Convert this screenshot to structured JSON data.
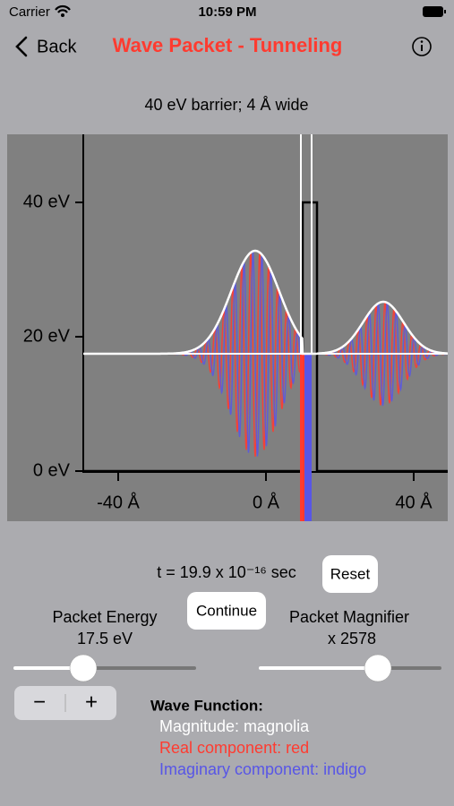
{
  "status": {
    "carrier": "Carrier",
    "time": "10:59 PM"
  },
  "nav": {
    "back": "Back",
    "title": "Wave Packet - Tunneling"
  },
  "plot": {
    "subtitle": "40 eV barrier; 4 Å wide",
    "y_tick_labels": [
      "40 eV",
      "20 eV",
      "0 eV"
    ],
    "x_tick_labels": [
      "-40 Å",
      "0 Å",
      "40 Å"
    ]
  },
  "controls": {
    "time": "t = 19.9 x 10⁻¹⁶ sec",
    "reset": "Reset",
    "continue": "Continue",
    "energy_label": "Packet Energy",
    "energy_value": "17.5 eV",
    "magnifier_label": "Packet Magnifier",
    "magnifier_value": "x 2578",
    "stepper_minus": "−",
    "stepper_plus": "+"
  },
  "legend": {
    "title": "Wave Function:",
    "items": [
      "Magnitude: magnolia",
      "Real component: red",
      "Imaginary component: indigo"
    ]
  }
}
